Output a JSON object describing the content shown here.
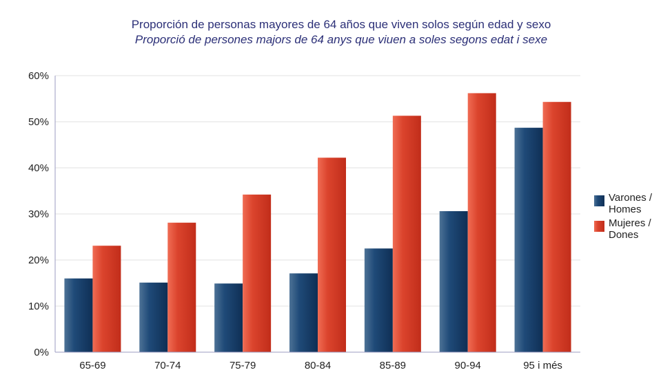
{
  "chart_data": {
    "type": "bar",
    "title": "Proporción de personas mayores de 64 años que viven solos según edad y sexo",
    "subtitle": "Proporció de persones majors de 64 anys que viuen a soles segons edat i sexe",
    "categories": [
      "65-69",
      "70-74",
      "75-79",
      "80-84",
      "85-89",
      "90-94",
      "95 i més"
    ],
    "series": [
      {
        "name": "Varones / Homes",
        "name_lines": [
          "Varones /",
          "Homes"
        ],
        "color": "#163c68",
        "values": [
          16.0,
          15.1,
          14.9,
          17.1,
          22.5,
          30.6,
          48.7
        ]
      },
      {
        "name": "Mujeres / Dones",
        "name_lines": [
          "Mujeres /",
          "Dones"
        ],
        "color": "#d13a25",
        "values": [
          23.1,
          28.1,
          34.2,
          42.2,
          51.3,
          56.2,
          54.3
        ]
      }
    ],
    "y_ticks": [
      "0%",
      "10%",
      "20%",
      "30%",
      "40%",
      "50%",
      "60%"
    ],
    "ylim": [
      0,
      60
    ],
    "grid": true,
    "legend_position": "right"
  }
}
